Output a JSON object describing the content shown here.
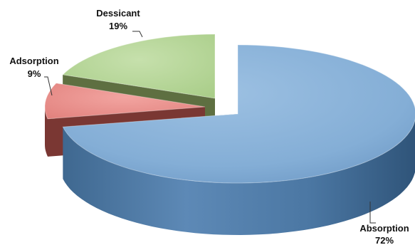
{
  "chart_data": {
    "type": "pie",
    "style": "3d-exploded",
    "categories": [
      "Absorption",
      "Adsorption",
      "Dessicant"
    ],
    "values": [
      72,
      9,
      19
    ],
    "labels": [
      {
        "name": "Absorption",
        "pct": "72%"
      },
      {
        "name": "Adsorption",
        "pct": "9%"
      },
      {
        "name": "Dessicant",
        "pct": "19%"
      }
    ],
    "colors": {
      "Absorption": {
        "top": "#84aed6",
        "side": "#4e7aa6"
      },
      "Adsorption": {
        "top": "#ec8f8c",
        "side": "#7a3733"
      },
      "Dessicant": {
        "top": "#b8d79a",
        "side": "#5e6f41"
      }
    },
    "legend": "none"
  }
}
